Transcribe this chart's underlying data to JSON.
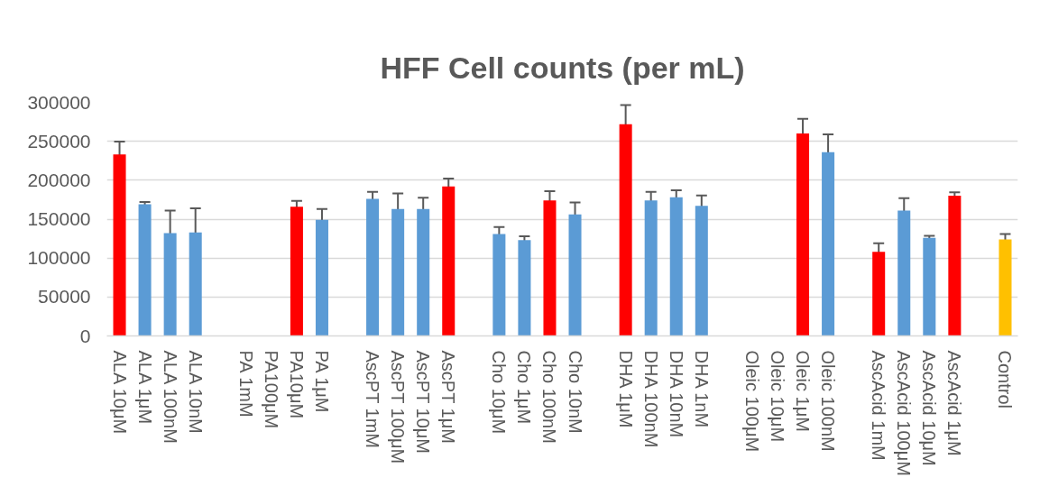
{
  "chart_data": {
    "type": "bar",
    "title": "HFF Cell counts (per mL)",
    "categories": [
      "ALA 10μM",
      "ALA 1μM",
      "ALA 100nM",
      "ALA 10nM",
      null,
      "PA 1mM",
      "PA100μM",
      "PA10μM",
      "PA 1μM",
      null,
      "AscPT 1mM",
      "AscPT 100μM",
      "AscPT 10μM",
      "AscPT 1μM",
      null,
      "Cho 10μM",
      "Cho 1μM",
      "Cho 100nM",
      "Cho 10nM",
      null,
      "DHA 1μM",
      "DHA 100nM",
      "DHA 10nM",
      "DHA 1nM",
      null,
      "Oleic 100μM",
      "Oleic 10μM",
      "Oleic 1μM",
      "Oleic 100nM",
      null,
      "AscAcid 1mM",
      "AscAcid 100μM",
      "AscAcid 10μM",
      "AscAcid 1μM",
      null,
      "Control"
    ],
    "values": [
      233000,
      169000,
      132000,
      133000,
      null,
      null,
      null,
      166000,
      149000,
      null,
      176000,
      163000,
      163000,
      192000,
      null,
      131000,
      123000,
      174000,
      156000,
      null,
      272000,
      174000,
      178000,
      167000,
      null,
      null,
      null,
      260000,
      236000,
      null,
      108000,
      161000,
      126000,
      180000,
      null,
      124000
    ],
    "errors": [
      16500,
      3000,
      29000,
      31000,
      null,
      null,
      null,
      7500,
      14000,
      null,
      9000,
      20000,
      14500,
      10000,
      null,
      9000,
      5000,
      12000,
      15500,
      null,
      24500,
      11000,
      9000,
      13500,
      null,
      null,
      null,
      19000,
      23000,
      null,
      11000,
      16000,
      2500,
      4500,
      null,
      7000
    ],
    "colors": [
      "#ff0000",
      "#5b9bd5",
      "#5b9bd5",
      "#5b9bd5",
      null,
      "#5b9bd5",
      "#5b9bd5",
      "#ff0000",
      "#5b9bd5",
      null,
      "#5b9bd5",
      "#5b9bd5",
      "#5b9bd5",
      "#ff0000",
      null,
      "#5b9bd5",
      "#5b9bd5",
      "#ff0000",
      "#5b9bd5",
      null,
      "#ff0000",
      "#5b9bd5",
      "#5b9bd5",
      "#5b9bd5",
      null,
      "#5b9bd5",
      "#5b9bd5",
      "#ff0000",
      "#5b9bd5",
      null,
      "#ff0000",
      "#5b9bd5",
      "#5b9bd5",
      "#ff0000",
      null,
      "#ffc000"
    ],
    "ylim": [
      0,
      300000
    ],
    "yticks": [
      0,
      50000,
      100000,
      150000,
      200000,
      250000,
      300000
    ],
    "grid": "y"
  }
}
